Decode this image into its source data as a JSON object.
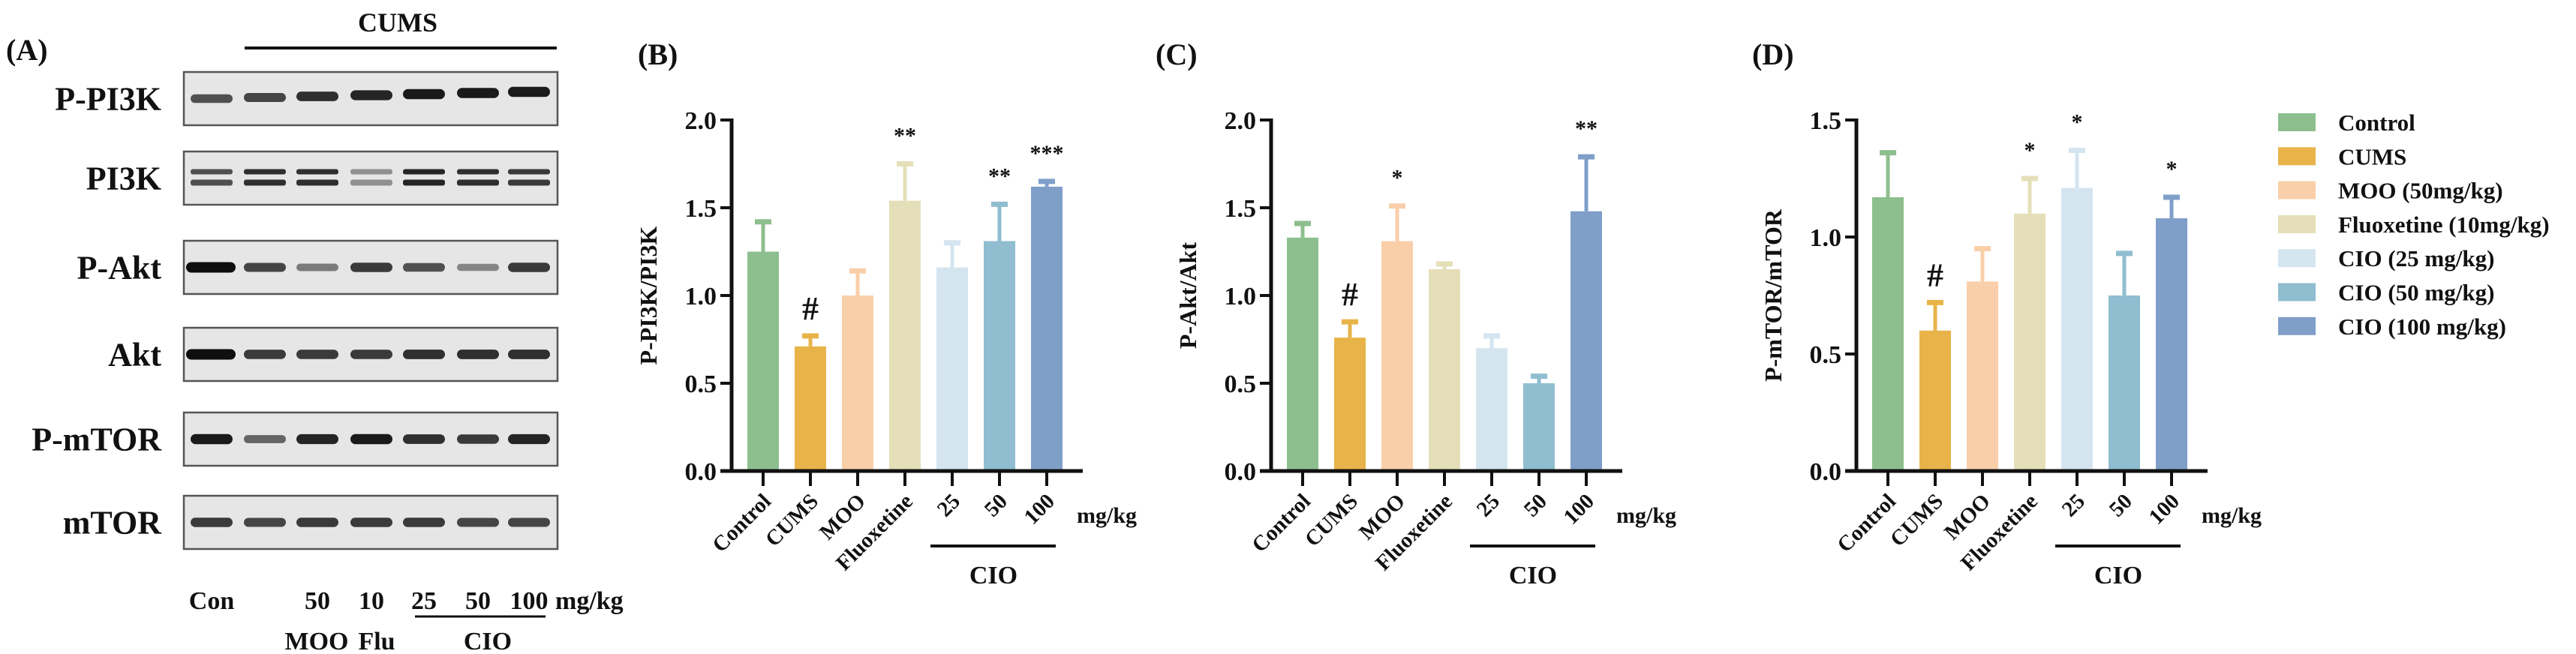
{
  "blot_panel": {
    "panel_label": "(A)",
    "group_label": "CUMS",
    "rows": [
      {
        "label": "P-PI3K",
        "intensity": [
          0.7,
          0.75,
          0.85,
          0.9,
          0.95,
          0.95,
          0.95
        ],
        "double": false
      },
      {
        "label": "PI3K",
        "intensity": [
          0.7,
          0.85,
          0.85,
          0.4,
          0.9,
          0.85,
          0.8
        ],
        "double": true
      },
      {
        "label": "P-Akt",
        "intensity": [
          1.0,
          0.75,
          0.5,
          0.8,
          0.7,
          0.45,
          0.8
        ],
        "double": false
      },
      {
        "label": "Akt",
        "intensity": [
          1.0,
          0.8,
          0.8,
          0.8,
          0.85,
          0.85,
          0.85
        ],
        "double": false
      },
      {
        "label": "P-mTOR",
        "intensity": [
          0.95,
          0.6,
          0.9,
          0.95,
          0.85,
          0.8,
          0.9
        ],
        "double": false
      },
      {
        "label": "mTOR",
        "intensity": [
          0.8,
          0.75,
          0.8,
          0.8,
          0.8,
          0.75,
          0.75
        ],
        "double": false
      }
    ],
    "lane_doses": [
      "Con",
      "",
      "50",
      "10",
      "25",
      "50",
      "100"
    ],
    "unit": "mg/kg",
    "groups": {
      "moo": "MOO",
      "flu": "Flu",
      "cio": "CIO"
    }
  },
  "colors": [
    "#8dbf8e",
    "#e8b44a",
    "#f9cfaa",
    "#e4dfb8",
    "#d4e5f0",
    "#90bdd0",
    "#7f9fc9"
  ],
  "legend": [
    "Control",
    "CUMS",
    "MOO (50mg/kg)",
    "Fluoxetine (10mg/kg)",
    "CIO (25 mg/kg)",
    "CIO (50 mg/kg)",
    "CIO (100 mg/kg)"
  ],
  "chart_data": [
    {
      "type": "bar",
      "panel_label": "(B)",
      "ylabel": "P-PI3K/PI3K",
      "ylim": [
        0,
        2.0
      ],
      "yticks": [
        "0.0",
        "0.5",
        "1.0",
        "1.5",
        "2.0"
      ],
      "ytick_values": [
        0,
        0.5,
        1.0,
        1.5,
        2.0
      ],
      "categories": [
        "Control",
        "CUMS",
        "MOO",
        "Fluoxetine",
        "25",
        "50",
        "100"
      ],
      "values": [
        1.25,
        0.71,
        1.0,
        1.54,
        1.16,
        1.31,
        1.62
      ],
      "error_upper": [
        1.42,
        0.77,
        1.14,
        1.75,
        1.3,
        1.52,
        1.65
      ],
      "significance": [
        "",
        "#",
        "",
        "**",
        "",
        "**",
        "***"
      ],
      "unit": "mg/kg",
      "group_label": "CIO"
    },
    {
      "type": "bar",
      "panel_label": "(C)",
      "ylabel": "P-Akt/Akt",
      "ylim": [
        0,
        2.0
      ],
      "yticks": [
        "0.0",
        "0.5",
        "1.0",
        "1.5",
        "2.0"
      ],
      "ytick_values": [
        0,
        0.5,
        1.0,
        1.5,
        2.0
      ],
      "categories": [
        "Control",
        "CUMS",
        "MOO",
        "Fluoxetine",
        "25",
        "50",
        "100"
      ],
      "values": [
        1.33,
        0.76,
        1.31,
        1.15,
        0.7,
        0.5,
        1.48
      ],
      "error_upper": [
        1.41,
        0.85,
        1.51,
        1.18,
        0.77,
        0.54,
        1.79
      ],
      "significance": [
        "",
        "#",
        "*",
        "",
        "",
        "",
        "**"
      ],
      "unit": "mg/kg",
      "group_label": "CIO"
    },
    {
      "type": "bar",
      "panel_label": "(D)",
      "ylabel": "P-mTOR/mTOR",
      "ylim": [
        0,
        1.5
      ],
      "yticks": [
        "0.0",
        "0.5",
        "1.0",
        "1.5"
      ],
      "ytick_values": [
        0,
        0.5,
        1.0,
        1.5
      ],
      "categories": [
        "Control",
        "CUMS",
        "MOO",
        "Fluoxetine",
        "25",
        "50",
        "100"
      ],
      "values": [
        1.17,
        0.6,
        0.81,
        1.1,
        1.21,
        0.75,
        1.08
      ],
      "error_upper": [
        1.36,
        0.72,
        0.95,
        1.25,
        1.37,
        0.93,
        1.17
      ],
      "significance": [
        "",
        "#",
        "",
        "*",
        "*",
        "",
        "*"
      ],
      "unit": "mg/kg",
      "group_label": "CIO"
    }
  ]
}
